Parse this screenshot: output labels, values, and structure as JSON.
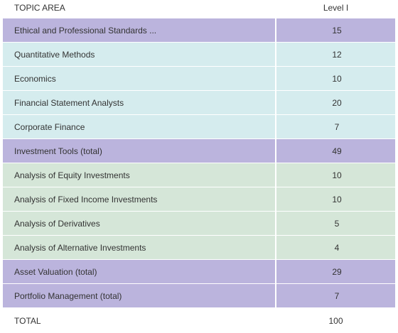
{
  "header": {
    "topic": "TOPIC AREA",
    "level": "Level I"
  },
  "rows": [
    {
      "topic": "Ethical and Professional Standards ...",
      "value": "15",
      "group": "purple"
    },
    {
      "topic": "Quantitative Methods",
      "value": "12",
      "group": "cyan"
    },
    {
      "topic": "Economics",
      "value": "10",
      "group": "cyan"
    },
    {
      "topic": "Financial Statement Analysts",
      "value": "20",
      "group": "cyan"
    },
    {
      "topic": "Corporate Finance",
      "value": "7",
      "group": "cyan"
    },
    {
      "topic": "Investment Tools (total)",
      "value": "49",
      "group": "purple"
    },
    {
      "topic": "Analysis of Equity Investments",
      "value": "10",
      "group": "green"
    },
    {
      "topic": "Analysis of Fixed Income Investments",
      "value": "10",
      "group": "green"
    },
    {
      "topic": "Analysis of Derivatives",
      "value": "5",
      "group": "green"
    },
    {
      "topic": "Analysis of Alternative Investments",
      "value": "4",
      "group": "green"
    },
    {
      "topic": "Asset Valuation (total)",
      "value": "29",
      "group": "purple"
    },
    {
      "topic": "Portfolio Management (total)",
      "value": "7",
      "group": "purple"
    }
  ],
  "footer": {
    "topic": "TOTAL",
    "value": "100"
  },
  "colors": {
    "purple": "#bbb4dd",
    "cyan": "#d5ecee",
    "green": "#d5e6d8"
  }
}
